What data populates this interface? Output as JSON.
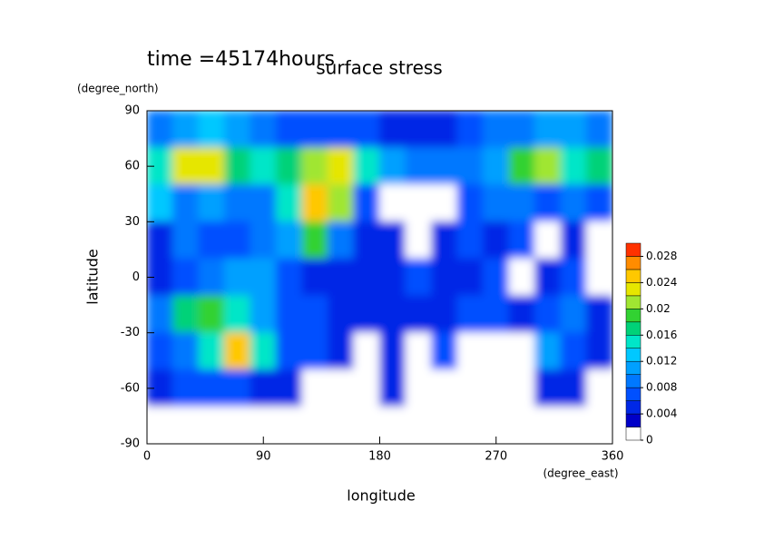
{
  "chart_data": {
    "type": "heatmap",
    "title": "surface stress",
    "subtitle": "time =45174hours",
    "x_label": "longitude",
    "y_label": "latitude",
    "x_units": "(degree_east)",
    "y_units": "(degree_north)",
    "x": [
      10,
      30,
      50,
      70,
      90,
      110,
      130,
      150,
      170,
      190,
      210,
      230,
      250,
      270,
      290,
      310,
      330,
      350
    ],
    "y": [
      80,
      60,
      40,
      20,
      0,
      -20,
      -40,
      -60,
      -80
    ],
    "z": [
      [
        0.008,
        0.01,
        0.012,
        0.01,
        0.008,
        0.006,
        0.006,
        0.006,
        0.006,
        0.004,
        0.004,
        0.004,
        0.006,
        0.008,
        0.008,
        0.01,
        0.01,
        0.008
      ],
      [
        0.014,
        0.022,
        0.022,
        0.016,
        0.014,
        0.016,
        0.02,
        0.022,
        0.014,
        0.01,
        0.008,
        0.008,
        0.008,
        0.01,
        0.018,
        0.02,
        0.014,
        0.016
      ],
      [
        0.012,
        0.008,
        0.01,
        0.008,
        0.008,
        0.014,
        0.024,
        0.02,
        0.006,
        0,
        0,
        0,
        0.006,
        0.008,
        0.008,
        0.006,
        0.008,
        0.006
      ],
      [
        0.004,
        0.008,
        0.006,
        0.006,
        0.008,
        0.01,
        0.018,
        0.008,
        0.004,
        0.004,
        0,
        0.004,
        0.006,
        0.004,
        0.006,
        0,
        0.004,
        0
      ],
      [
        0.004,
        0.006,
        0.008,
        0.01,
        0.01,
        0.006,
        0.004,
        0.004,
        0.004,
        0.004,
        0.006,
        0.004,
        0.004,
        0.006,
        0,
        0.004,
        0.006,
        0
      ],
      [
        0.008,
        0.016,
        0.018,
        0.014,
        0.01,
        0.006,
        0.006,
        0.004,
        0.004,
        0.004,
        0.004,
        0.004,
        0.006,
        0.006,
        0.004,
        0.006,
        0.008,
        0.004
      ],
      [
        0.006,
        0.008,
        0.014,
        0.024,
        0.014,
        0.006,
        0.006,
        0.004,
        0,
        0.004,
        0,
        0.006,
        0,
        0,
        0,
        0.01,
        0.006,
        0.004
      ],
      [
        0.004,
        0.006,
        0.006,
        0.006,
        0.004,
        0.004,
        0,
        0,
        0,
        0.004,
        0,
        0,
        0,
        0,
        0,
        0.004,
        0.004,
        0
      ],
      [
        0,
        0,
        0,
        0,
        0,
        0,
        0,
        0,
        0,
        0,
        0,
        0,
        0,
        0,
        0,
        0,
        0,
        0
      ]
    ],
    "xlim": [
      0,
      360
    ],
    "ylim": [
      -90,
      90
    ],
    "xticks": [
      0,
      90,
      180,
      270,
      360
    ],
    "yticks": [
      -90,
      -60,
      -30,
      0,
      30,
      60,
      90
    ],
    "levels": [
      0,
      0.002,
      0.004,
      0.006,
      0.008,
      0.01,
      0.012,
      0.014,
      0.016,
      0.018,
      0.02,
      0.022,
      0.024,
      0.026,
      0.028,
      0.03
    ],
    "colors": [
      "#ffffff",
      "#0000c8",
      "#0028e6",
      "#0050ff",
      "#0078ff",
      "#00a0ff",
      "#00c8ff",
      "#00e6c8",
      "#00d278",
      "#32d232",
      "#a0e632",
      "#e6e600",
      "#ffc800",
      "#ff8c00",
      "#ff3200"
    ],
    "colorbar_ticks": [
      0,
      0.004,
      0.008,
      0.012,
      0.016,
      0.02,
      0.024,
      0.028
    ]
  }
}
